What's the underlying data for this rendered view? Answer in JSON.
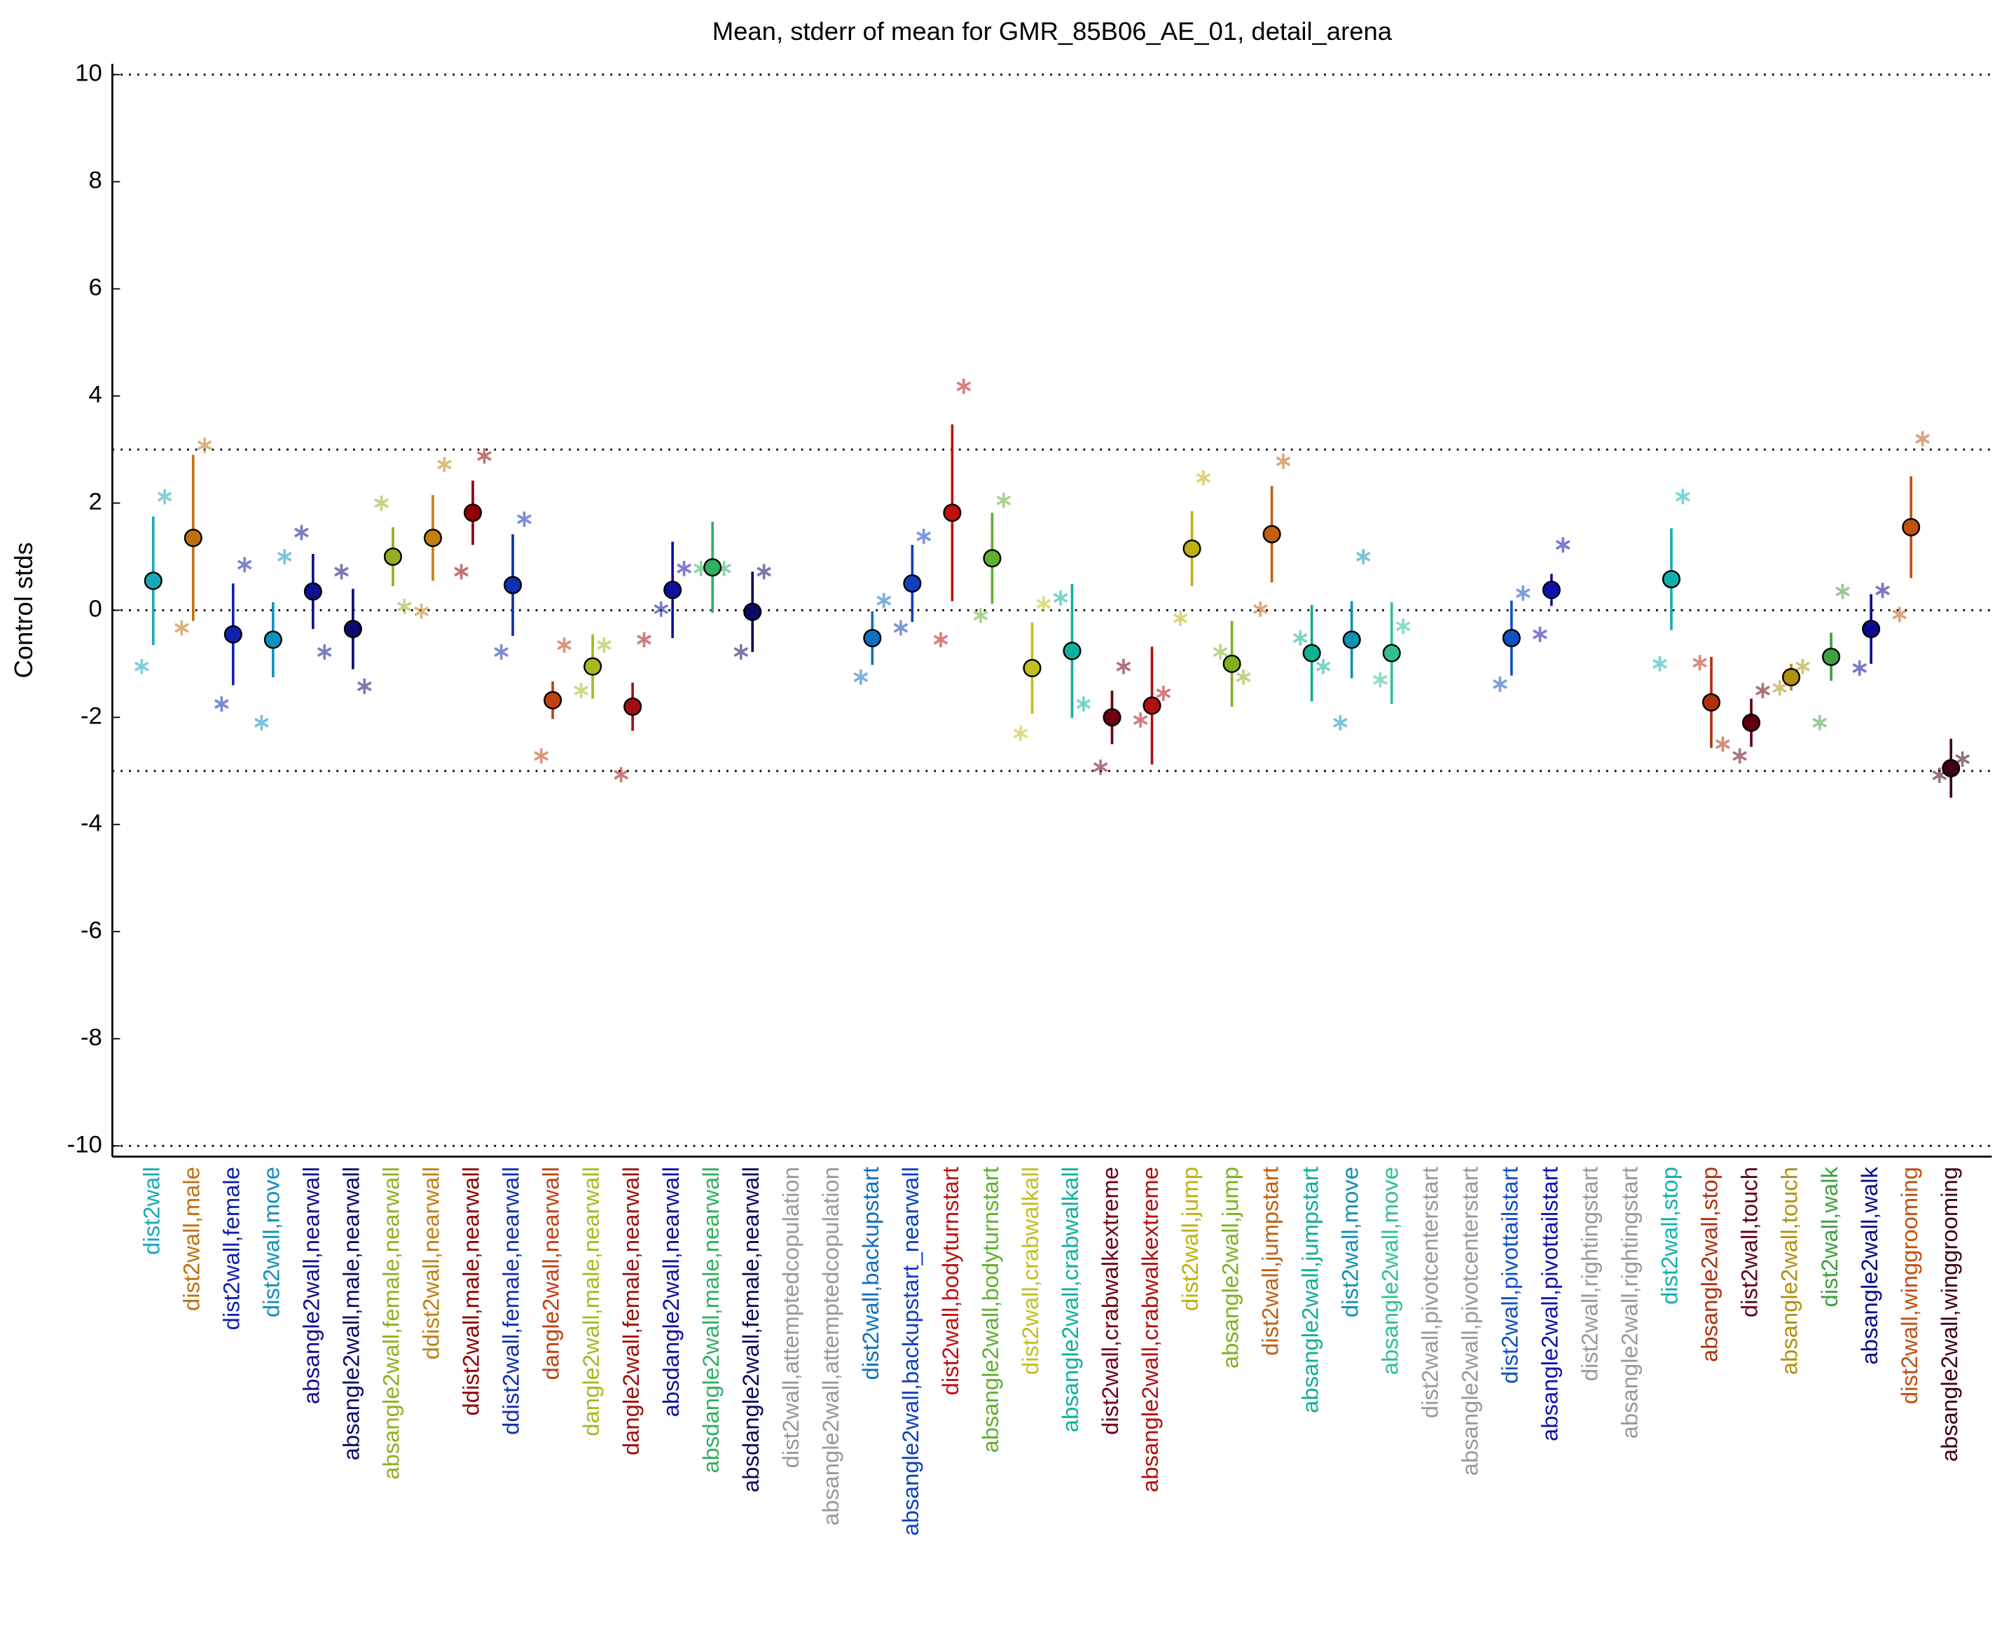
{
  "chart_data": {
    "type": "errorbar",
    "title": "Mean, stderr of mean for GMR_85B06_AE_01, detail_arena",
    "y_label": "Control stds",
    "ylim": [
      -10.2,
      10.2
    ],
    "yticks": [
      -10,
      -8,
      -6,
      -4,
      -2,
      0,
      2,
      4,
      6,
      8,
      10
    ],
    "reference_lines": [
      -10,
      -3,
      0,
      3,
      10
    ],
    "categories": [
      "dist2wall",
      "dist2wall,male",
      "dist2wall,female",
      "dist2wall,move",
      "absangle2wall,nearwall",
      "absangle2wall,male,nearwall",
      "absangle2wall,female,nearwall",
      "ddist2wall,nearwall",
      "ddist2wall,male,nearwall",
      "ddist2wall,female,nearwall",
      "dangle2wall,nearwall",
      "dangle2wall,male,nearwall",
      "dangle2wall,female,nearwall",
      "absdangle2wall,nearwall",
      "absdangle2wall,male,nearwall",
      "absdangle2wall,female,nearwall",
      "dist2wall,attemptedcopulation",
      "absangle2wall,attemptedcopulation",
      "dist2wall,backupstart",
      "absangle2wall,backupstart_nearwall",
      "dist2wall,bodyturnstart",
      "absangle2wall,bodyturnstart",
      "dist2wall,crabwalkall",
      "absangle2wall,crabwalkall",
      "dist2wall,crabwalkextreme",
      "absangle2wall,crabwalkextreme",
      "dist2wall,jump",
      "absangle2wall,jump",
      "dist2wall,jumpstart",
      "absangle2wall,jumpstart",
      "dist2wall,move",
      "absangle2wall,move",
      "dist2wall,pivotcenterstart",
      "absangle2wall,pivotcenterstart",
      "dist2wall,pivottailstart",
      "absangle2wall,pivottailstart",
      "dist2wall,rightingstart",
      "absangle2wall,rightingstart",
      "dist2wall,stop",
      "absangle2wall,stop",
      "dist2wall,touch",
      "absangle2wall,touch",
      "dist2wall,walk",
      "absangle2wall,walk",
      "dist2wall,winggrooming",
      "absangle2wall,winggrooming"
    ],
    "colors": [
      "#1aa8b8",
      "#c07010",
      "#1020b0",
      "#1090c0",
      "#101090",
      "#0a0a70",
      "#90b020",
      "#c08010",
      "#900000",
      "#1030b0",
      "#c04010",
      "#a8b820",
      "#a01010",
      "#1010a0",
      "#30b060",
      "#0a0a60",
      "#999999",
      "#999999",
      "#1070c0",
      "#1040c0",
      "#c01010",
      "#60b030",
      "#c0c020",
      "#10b0a0",
      "#700010",
      "#b01010",
      "#c0b010",
      "#80b020",
      "#c06010",
      "#10b090",
      "#1090b0",
      "#30c090",
      "#999999",
      "#999999",
      "#1050c0",
      "#1010b0",
      "#999999",
      "#999999",
      "#10b0b0",
      "#b03010",
      "#600010",
      "#b09010",
      "#40a040",
      "#0a0a90",
      "#c05010",
      "#400010"
    ],
    "values": [
      0.55,
      1.35,
      -0.45,
      -0.55,
      0.35,
      -0.35,
      1.0,
      1.35,
      1.82,
      0.47,
      -1.68,
      -1.05,
      -1.8,
      0.38,
      0.8,
      -0.03,
      null,
      null,
      -0.52,
      0.5,
      1.82,
      0.97,
      -1.08,
      -0.76,
      -2.0,
      -1.78,
      1.15,
      -1.0,
      1.42,
      -0.8,
      -0.55,
      -0.8,
      null,
      null,
      -0.52,
      0.38,
      null,
      null,
      0.58,
      -1.72,
      -2.1,
      -1.25,
      -0.87,
      -0.35,
      1.55,
      -2.95
    ],
    "errors": [
      1.2,
      1.55,
      0.95,
      0.7,
      0.7,
      0.75,
      0.55,
      0.8,
      0.6,
      0.95,
      0.35,
      0.6,
      0.45,
      0.9,
      0.85,
      0.75,
      null,
      null,
      0.5,
      0.72,
      1.65,
      0.85,
      0.85,
      1.25,
      0.5,
      1.1,
      0.7,
      0.8,
      0.9,
      0.9,
      0.72,
      0.95,
      null,
      null,
      0.7,
      0.3,
      null,
      null,
      0.95,
      0.85,
      0.45,
      0.25,
      0.45,
      0.65,
      0.95,
      0.55
    ],
    "left_values": [
      -1.05,
      -0.33,
      -1.75,
      -2.1,
      1.45,
      0.72,
      2.0,
      -0.02,
      0.72,
      -0.78,
      -2.72,
      -1.5,
      -3.07,
      0.02,
      0.78,
      -0.78,
      null,
      null,
      -1.25,
      -0.33,
      -0.55,
      -0.1,
      -2.3,
      0.23,
      -2.93,
      -2.05,
      -0.15,
      -0.78,
      0.02,
      -0.52,
      -2.1,
      -1.3,
      null,
      null,
      -1.38,
      -0.45,
      null,
      null,
      -1.0,
      -0.98,
      -2.72,
      -1.45,
      -2.1,
      -1.08,
      -0.08,
      -3.08
    ],
    "right_values": [
      2.12,
      3.08,
      0.85,
      1.0,
      -0.78,
      -1.42,
      0.07,
      2.72,
      2.88,
      1.7,
      -0.65,
      -0.65,
      -0.55,
      0.78,
      0.78,
      0.72,
      null,
      null,
      0.18,
      1.38,
      4.18,
      2.05,
      0.12,
      -1.75,
      -1.05,
      -1.55,
      2.47,
      -1.25,
      2.78,
      -1.05,
      1.0,
      -0.3,
      null,
      null,
      0.32,
      1.22,
      null,
      null,
      2.12,
      -2.5,
      -1.5,
      -1.05,
      0.35,
      0.37,
      3.2,
      -2.78
    ]
  }
}
